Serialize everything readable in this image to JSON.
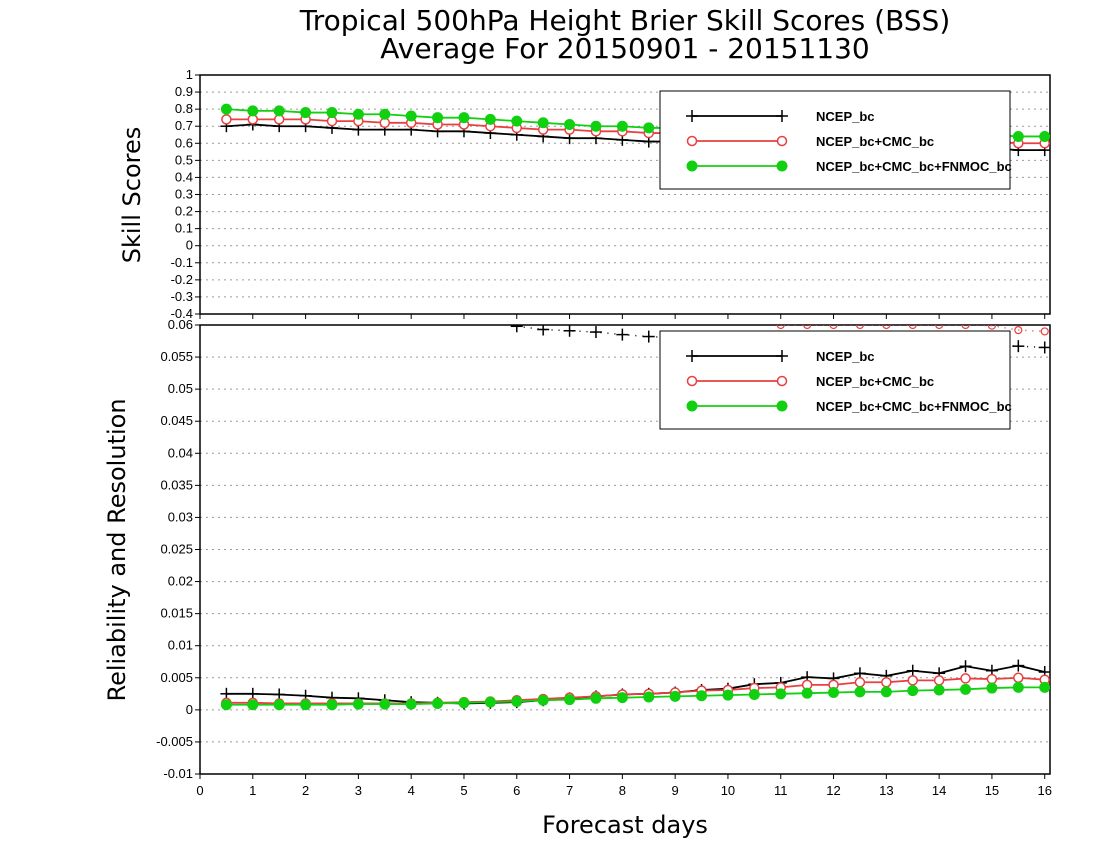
{
  "colors": {
    "NCEP_bc": "#000000",
    "NCEP_bc+CMC_bc": "#e84040",
    "NCEP_bc+CMC_bc+FNMOC_bc": "#10d010",
    "grid": "#9a9a9a"
  },
  "chart_data": [
    {
      "type": "line",
      "title": "Tropical 500hPa Height Brier Skill Scores (BSS)",
      "subtitle": "Average For 20150901 - 20151130",
      "ylabel": "Skill Scores",
      "xlim": [
        0,
        16.1
      ],
      "ylim": [
        -0.4,
        1
      ],
      "yticks": [
        "-0.4",
        "-0.3",
        "-0.2",
        "-0.1",
        "0",
        "0.1",
        "0.2",
        "0.3",
        "0.4",
        "0.5",
        "0.6",
        "0.7",
        "0.8",
        "0.9",
        "1"
      ],
      "grid": true,
      "legend": "top-right",
      "x": [
        0.5,
        1,
        1.5,
        2,
        2.5,
        3,
        3.5,
        4,
        4.5,
        5,
        5.5,
        6,
        6.5,
        7,
        7.5,
        8,
        8.5,
        9,
        9.5,
        10,
        10.5,
        11,
        11.5,
        12,
        12.5,
        13,
        13.5,
        14,
        14.5,
        15,
        15.5,
        16
      ],
      "series": [
        {
          "name": "NCEP_bc",
          "values": [
            0.7,
            0.71,
            0.7,
            0.7,
            0.69,
            0.68,
            0.68,
            0.68,
            0.67,
            0.67,
            0.66,
            0.65,
            0.64,
            0.63,
            0.63,
            0.62,
            0.61,
            0.61,
            0.6,
            0.6,
            0.6,
            0.6,
            0.59,
            0.59,
            0.59,
            0.58,
            0.58,
            0.58,
            0.57,
            0.57,
            0.56,
            0.56
          ]
        },
        {
          "name": "NCEP_bc+CMC_bc",
          "values": [
            0.74,
            0.74,
            0.74,
            0.74,
            0.73,
            0.73,
            0.72,
            0.72,
            0.71,
            0.71,
            0.7,
            0.69,
            0.68,
            0.68,
            0.67,
            0.67,
            0.66,
            0.66,
            0.65,
            0.65,
            0.64,
            0.64,
            0.63,
            0.63,
            0.62,
            0.62,
            0.62,
            0.61,
            0.61,
            0.61,
            0.6,
            0.6
          ]
        },
        {
          "name": "NCEP_bc+CMC_bc+FNMOC_bc",
          "values": [
            0.8,
            0.79,
            0.79,
            0.78,
            0.78,
            0.77,
            0.77,
            0.76,
            0.75,
            0.75,
            0.74,
            0.73,
            0.72,
            0.71,
            0.7,
            0.7,
            0.69,
            0.69,
            0.68,
            0.68,
            0.67,
            0.67,
            0.67,
            0.66,
            0.66,
            0.66,
            0.65,
            0.65,
            0.65,
            0.65,
            0.64,
            0.64
          ]
        }
      ]
    },
    {
      "type": "line",
      "ylabel": "Reliability and Resolution",
      "xlabel": "Forecast days",
      "xlim": [
        0,
        16.1
      ],
      "ylim": [
        -0.01,
        0.06
      ],
      "xticks": [
        "0",
        "1",
        "2",
        "3",
        "4",
        "5",
        "6",
        "7",
        "8",
        "9",
        "10",
        "11",
        "12",
        "13",
        "14",
        "15",
        "16"
      ],
      "yticks": [
        "-0.01",
        "-0.005",
        "0",
        "0.005",
        "0.01",
        "0.015",
        "0.02",
        "0.025",
        "0.03",
        "0.035",
        "0.04",
        "0.045",
        "0.05",
        "0.055",
        "0.06"
      ],
      "grid": true,
      "legend": "top-right",
      "x": [
        0.5,
        1,
        1.5,
        2,
        2.5,
        3,
        3.5,
        4,
        4.5,
        5,
        5.5,
        6,
        6.5,
        7,
        7.5,
        8,
        8.5,
        9,
        9.5,
        10,
        10.5,
        11,
        11.5,
        12,
        12.5,
        13,
        13.5,
        14,
        14.5,
        15,
        15.5,
        16
      ],
      "series": [
        {
          "name": "NCEP_bc",
          "values": [
            0.0025,
            0.0025,
            0.0024,
            0.0022,
            0.0019,
            0.0018,
            0.0015,
            0.0012,
            0.0011,
            0.001,
            0.0011,
            0.0012,
            0.0015,
            0.0018,
            0.0021,
            0.0024,
            0.0025,
            0.0027,
            0.0031,
            0.0033,
            0.004,
            0.0042,
            0.0051,
            0.0049,
            0.0057,
            0.0053,
            0.0061,
            0.0057,
            0.0068,
            0.0061,
            0.0069,
            0.0059
          ]
        },
        {
          "name": "NCEP_bc+CMC_bc",
          "values": [
            0.0011,
            0.0011,
            0.001,
            0.001,
            0.001,
            0.001,
            0.001,
            0.001,
            0.0011,
            0.0012,
            0.0013,
            0.0015,
            0.0017,
            0.0019,
            0.0021,
            0.0024,
            0.0025,
            0.0027,
            0.003,
            0.0031,
            0.0034,
            0.0035,
            0.0039,
            0.0039,
            0.0043,
            0.0043,
            0.0046,
            0.0046,
            0.0049,
            0.0048,
            0.005,
            0.0047
          ]
        },
        {
          "name": "NCEP_bc+CMC_bc+FNMOC_bc",
          "values": [
            0.0008,
            0.0008,
            0.0008,
            0.0008,
            0.0008,
            0.0009,
            0.0009,
            0.0009,
            0.001,
            0.0011,
            0.0012,
            0.0013,
            0.0015,
            0.0016,
            0.0018,
            0.0019,
            0.002,
            0.0021,
            0.0022,
            0.0023,
            0.0024,
            0.0025,
            0.0026,
            0.0027,
            0.0028,
            0.0028,
            0.003,
            0.0031,
            0.0032,
            0.0034,
            0.0035,
            0.0035
          ]
        },
        {
          "name": "",
          "style": "dotted",
          "values": [
            null,
            null,
            null,
            null,
            null,
            null,
            null,
            null,
            null,
            null,
            null,
            0.0598,
            0.0593,
            0.0591,
            0.0589,
            0.0585,
            0.0582,
            0.058,
            0.058,
            0.0578,
            0.0577,
            0.0576,
            0.0576,
            0.0575,
            0.0574,
            0.0573,
            0.0572,
            0.0571,
            0.057,
            0.0568,
            0.0567,
            0.0565
          ]
        },
        {
          "name": "",
          "style": "dotted-circle",
          "values": [
            null,
            null,
            null,
            null,
            null,
            null,
            null,
            null,
            null,
            null,
            null,
            null,
            null,
            null,
            null,
            null,
            null,
            null,
            null,
            null,
            null,
            0.06,
            0.06,
            0.06,
            0.06,
            0.06,
            0.06,
            0.06,
            0.06,
            0.0599,
            0.0592,
            0.059
          ]
        }
      ]
    }
  ]
}
